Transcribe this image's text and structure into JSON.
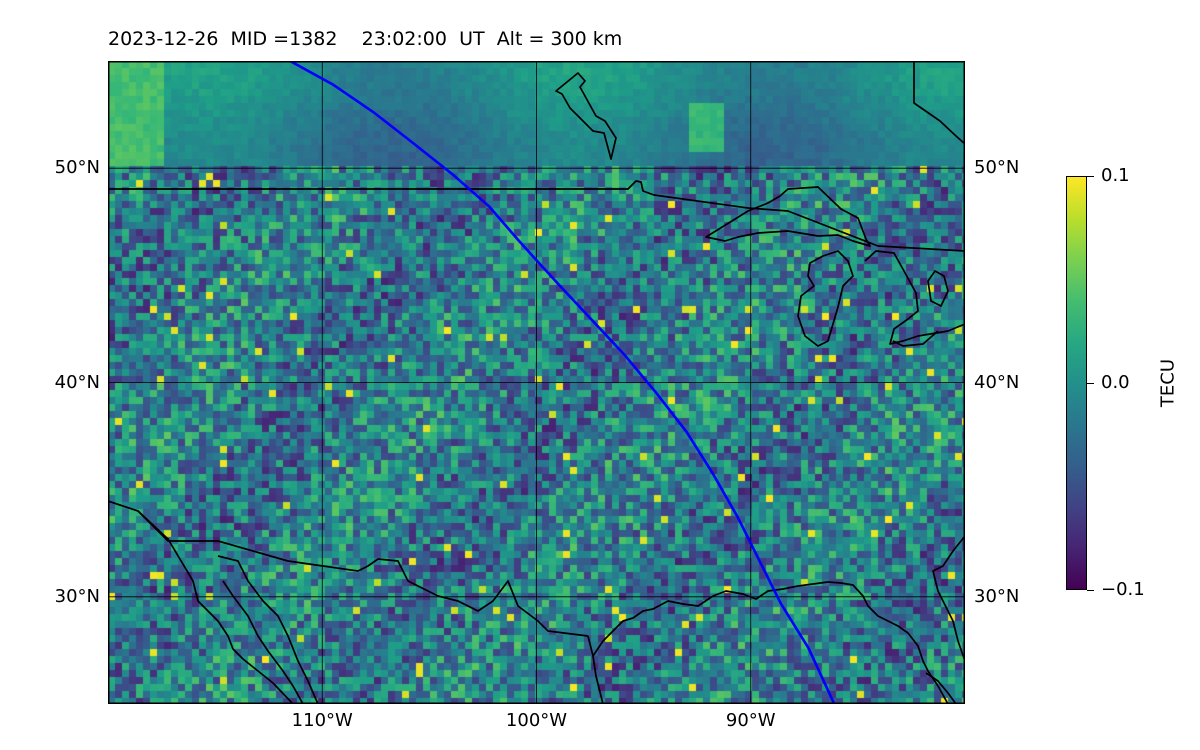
{
  "title": {
    "date": "2023-12-26",
    "mid": "MID =1382",
    "time": "23:02:00",
    "ut": "UT",
    "alt": "Alt = 300 km"
  },
  "map": {
    "lat_range": [
      25,
      55
    ],
    "lon_range": [
      -120,
      -80
    ],
    "lat_ticks": [
      {
        "value": 50,
        "label": "50°N"
      },
      {
        "value": 40,
        "label": "40°N"
      },
      {
        "value": 30,
        "label": "30°N"
      }
    ],
    "lon_ticks": [
      {
        "value": -110,
        "label": "110°W"
      },
      {
        "value": -100,
        "label": "100°W"
      },
      {
        "value": -90,
        "label": "90°W"
      }
    ],
    "grid": true,
    "colormap": "viridis",
    "track_color": "#0000ff",
    "coast_color": "#000000",
    "satellite_track": [
      [
        -111.5,
        55
      ],
      [
        -109.5,
        53.9
      ],
      [
        -107.6,
        52.6
      ],
      [
        -105.8,
        51.2
      ],
      [
        -103.9,
        49.7
      ],
      [
        -102.2,
        48.2
      ],
      [
        -100.9,
        46.7
      ],
      [
        -100.0,
        45.7
      ],
      [
        -98.9,
        44.5
      ],
      [
        -97.4,
        42.9
      ],
      [
        -95.9,
        41.3
      ],
      [
        -94.4,
        39.5
      ],
      [
        -93.0,
        37.7
      ],
      [
        -91.8,
        35.8
      ],
      [
        -90.6,
        33.7
      ],
      [
        -89.6,
        31.7
      ],
      [
        -88.6,
        29.7
      ],
      [
        -87.3,
        27.6
      ],
      [
        -86.1,
        25
      ]
    ]
  },
  "colorbar": {
    "label": "TECU",
    "ticks": [
      {
        "value": 0.1,
        "label": "0.1"
      },
      {
        "value": 0.0,
        "label": "0.0"
      },
      {
        "value": -0.1,
        "label": "−0.1"
      }
    ],
    "min": -0.1,
    "max": 0.1
  }
}
